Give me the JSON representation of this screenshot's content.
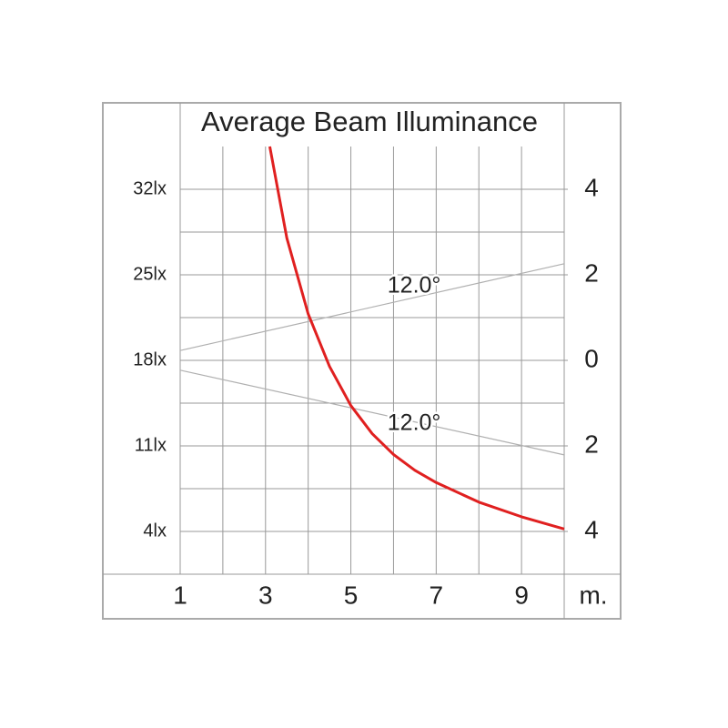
{
  "chart_data": {
    "type": "line",
    "title": "Average Beam Illuminance",
    "x_unit_label": "m.",
    "xlim": [
      1,
      10
    ],
    "xticks": [
      1,
      3,
      5,
      7,
      9
    ],
    "xminorticks": [
      2,
      4,
      6,
      8,
      10
    ],
    "ylim": [
      0.5,
      35.5
    ],
    "yticks": [
      {
        "value": 32,
        "label": "32lx"
      },
      {
        "value": 25,
        "label": "25lx"
      },
      {
        "value": 18,
        "label": "18lx"
      },
      {
        "value": 11,
        "label": "11lx"
      },
      {
        "value": 4,
        "label": "4lx"
      }
    ],
    "yminorticks": [
      28.5,
      21.5,
      14.5,
      7.5
    ],
    "y2lim": [
      -5,
      5
    ],
    "y2ticks": [
      4,
      2,
      0,
      {
        "value": -2,
        "label": "2"
      },
      {
        "value": -4,
        "label": "4"
      }
    ],
    "grid": true,
    "series": [
      {
        "color": "#e02020",
        "x": [
          3.1,
          3.5,
          4,
          4.5,
          5,
          5.5,
          6,
          6.5,
          7,
          8,
          9,
          10
        ],
        "values": [
          35.5,
          28,
          21.8,
          17.5,
          14.3,
          12,
          10.3,
          9,
          8,
          6.4,
          5.2,
          4.2
        ]
      },
      {
        "color": "#b0b0b0",
        "axis": "y2",
        "x": [
          1,
          10
        ],
        "values": [
          0.23,
          2.26
        ]
      },
      {
        "color": "#b0b0b0",
        "axis": "y2",
        "x": [
          1,
          10
        ],
        "values": [
          -0.23,
          -2.21
        ]
      }
    ],
    "annotations": [
      {
        "text": "12.0°"
      },
      {
        "text": "12.0°"
      }
    ]
  }
}
